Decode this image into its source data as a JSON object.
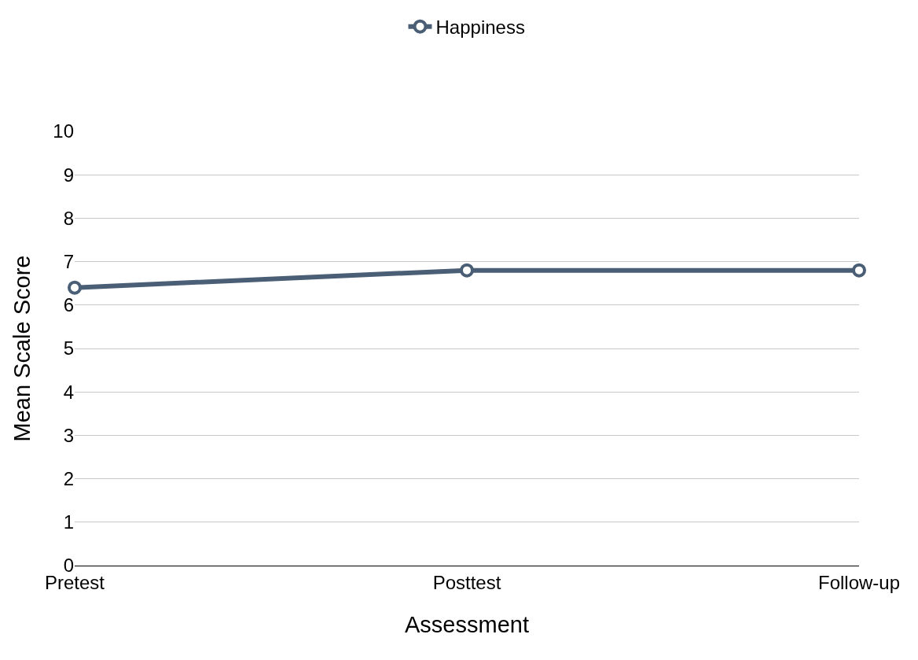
{
  "chart_data": {
    "type": "line",
    "xlabel": "Assessment",
    "ylabel": "Mean Scale Score",
    "categories": [
      "Pretest",
      "Posttest",
      "Follow-up"
    ],
    "series": [
      {
        "name": "Happiness",
        "color": "#4a5f75",
        "values": [
          6.4,
          6.8,
          6.8
        ]
      }
    ],
    "ylim": [
      0,
      10
    ],
    "yticks": [
      0,
      1,
      2,
      3,
      4,
      5,
      6,
      7,
      8,
      9,
      10
    ],
    "grid": "y",
    "legend": "top",
    "marker": "circle",
    "line_style": "solid"
  }
}
